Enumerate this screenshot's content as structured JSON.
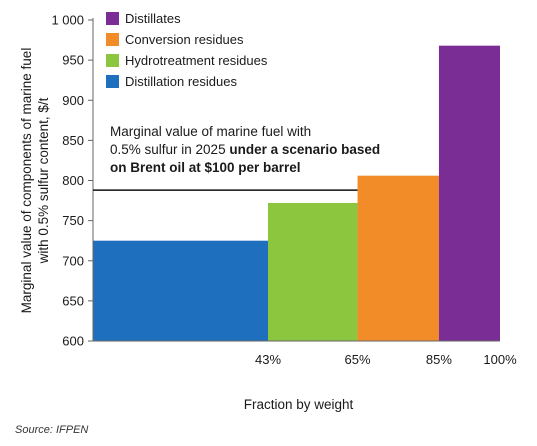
{
  "chart_data": {
    "type": "bar",
    "subtype": "variable-width (cumulative fraction) bar chart",
    "ylabel_lines": [
      "Marginal value of components of marine fuel",
      "with 0.5% sulfur content, $/t"
    ],
    "xlabel": "Fraction by weight",
    "ylim": [
      600,
      1000
    ],
    "yticks": [
      600,
      650,
      700,
      750,
      800,
      850,
      900,
      950,
      1000
    ],
    "ytick_labels": [
      "600",
      "650",
      "700",
      "750",
      "800",
      "850",
      "900",
      "950",
      "1 000"
    ],
    "xlim": [
      0,
      100
    ],
    "xticks": [
      43,
      65,
      85,
      100
    ],
    "xtick_labels": [
      "43%",
      "65%",
      "85%",
      "100%"
    ],
    "grid": false,
    "legend_placement": "top-left",
    "bars": [
      {
        "name": "Distillation residues",
        "x_start": 0,
        "x_end": 43,
        "value": 725,
        "color": "#1f6fbf"
      },
      {
        "name": "Hydrotreatment residues",
        "x_start": 43,
        "x_end": 65,
        "value": 772,
        "color": "#8cc63f"
      },
      {
        "name": "Conversion residues",
        "x_start": 65,
        "x_end": 85,
        "value": 806,
        "color": "#f28c28"
      },
      {
        "name": "Distillates",
        "x_start": 85,
        "x_end": 100,
        "value": 968,
        "color": "#7b2d96"
      }
    ],
    "legend": [
      {
        "label": "Distillates",
        "color": "#7b2d96"
      },
      {
        "label": "Conversion residues",
        "color": "#f28c28"
      },
      {
        "label": "Hydrotreatment residues",
        "color": "#8cc63f"
      },
      {
        "label": "Distillation residues",
        "color": "#1f6fbf"
      }
    ],
    "reference_line": {
      "value": 788,
      "x_start": 0,
      "x_end": 65
    },
    "annotation": {
      "line1": "Marginal value of marine fuel with",
      "line2": "0.5% sulfur in 2025 ",
      "line2_bold": "under a scenario based",
      "line3_bold": "on Brent oil at $100 per barrel"
    }
  },
  "source": "Source: IFPEN"
}
